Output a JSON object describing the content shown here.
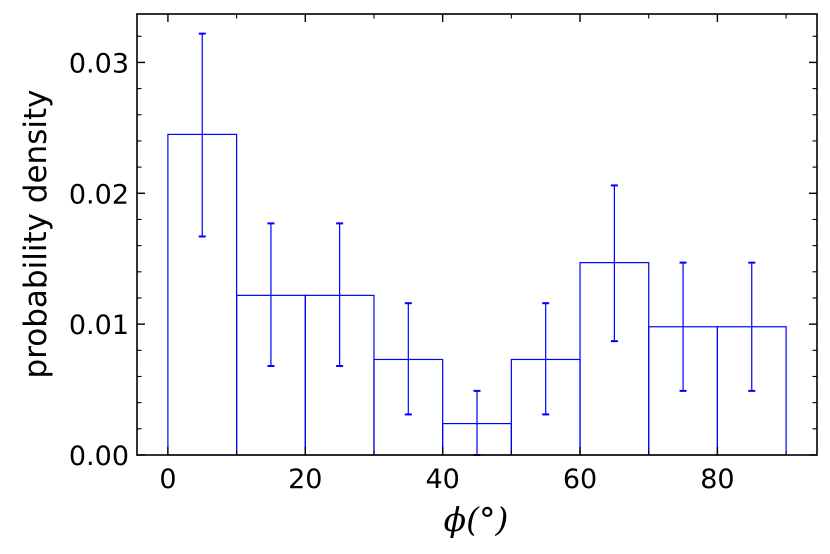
{
  "chart_data": {
    "type": "bar",
    "style": "step-histogram",
    "bins": [
      {
        "x0": 0,
        "x1": 10,
        "value": 0.0245,
        "err_low": 0.0167,
        "err_high": 0.0322
      },
      {
        "x0": 10,
        "x1": 20,
        "value": 0.0122,
        "err_low": 0.0068,
        "err_high": 0.0177
      },
      {
        "x0": 20,
        "x1": 30,
        "value": 0.0122,
        "err_low": 0.0068,
        "err_high": 0.0177
      },
      {
        "x0": 30,
        "x1": 40,
        "value": 0.0073,
        "err_low": 0.0031,
        "err_high": 0.0116
      },
      {
        "x0": 40,
        "x1": 50,
        "value": 0.0024,
        "err_low": 0.0,
        "err_high": 0.0049
      },
      {
        "x0": 50,
        "x1": 60,
        "value": 0.0073,
        "err_low": 0.0031,
        "err_high": 0.0116
      },
      {
        "x0": 60,
        "x1": 70,
        "value": 0.0147,
        "err_low": 0.0087,
        "err_high": 0.0206
      },
      {
        "x0": 70,
        "x1": 80,
        "value": 0.0098,
        "err_low": 0.0049,
        "err_high": 0.0147
      },
      {
        "x0": 80,
        "x1": 90,
        "value": 0.0098,
        "err_low": 0.0049,
        "err_high": 0.0147
      }
    ],
    "xlabel": "ϕ(°)",
    "ylabel": "probability density",
    "xlim": [
      -4.5,
      94.5
    ],
    "ylim": [
      0,
      0.0337
    ],
    "xticks": [
      0,
      20,
      40,
      60,
      80
    ],
    "xtick_labels": [
      "0",
      "20",
      "40",
      "60",
      "80"
    ],
    "xminor": [
      10,
      30,
      50,
      70,
      90
    ],
    "yticks": [
      0.0,
      0.01,
      0.02,
      0.03
    ],
    "ytick_labels": [
      "0.00",
      "0.01",
      "0.02",
      "0.03"
    ],
    "yminor_step": 0.002,
    "grid": false,
    "colors": {
      "series": "#0000ff",
      "axes": "#000000"
    }
  }
}
